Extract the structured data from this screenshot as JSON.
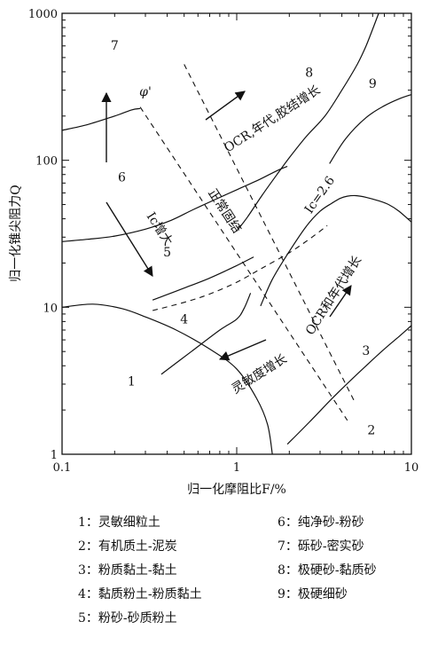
{
  "chart_data": {
    "type": "line",
    "title": "",
    "xlabel": "归一化摩阻比F/%",
    "ylabel": "归一化锥尖阻力Q",
    "x_scale": "log",
    "y_scale": "log",
    "xlim": [
      0.1,
      10
    ],
    "ylim": [
      1,
      1000
    ],
    "x_ticks": [
      0.1,
      1,
      10
    ],
    "x_tick_labels": [
      "0.1",
      "1",
      "10"
    ],
    "y_ticks": [
      1,
      10,
      100,
      1000
    ],
    "y_tick_labels": [
      "1",
      "10",
      "100",
      "1000"
    ],
    "grid": false,
    "zone_boundaries": [
      {
        "points": [
          [
            0.1,
            10
          ],
          [
            0.15,
            10.5
          ],
          [
            0.22,
            9.8
          ],
          [
            0.3,
            8.6
          ],
          [
            0.45,
            7.0
          ],
          [
            0.7,
            5.2
          ],
          [
            1.0,
            3.8
          ],
          [
            1.3,
            2.4
          ],
          [
            1.5,
            1.6
          ],
          [
            1.6,
            1.0
          ]
        ]
      },
      {
        "points": [
          [
            0.1,
            28
          ],
          [
            0.14,
            29
          ],
          [
            0.2,
            30.5
          ],
          [
            0.3,
            34
          ],
          [
            0.42,
            39
          ],
          [
            0.56,
            46
          ],
          [
            0.75,
            54
          ],
          [
            1.0,
            63
          ],
          [
            1.35,
            74
          ],
          [
            1.7,
            85
          ],
          [
            1.95,
            91
          ]
        ]
      },
      {
        "points": [
          [
            0.1,
            160
          ],
          [
            0.14,
            175
          ],
          [
            0.2,
            200
          ],
          [
            0.25,
            220
          ],
          [
            0.28,
            225
          ]
        ]
      },
      {
        "points": [
          [
            0.33,
            11.2
          ],
          [
            0.5,
            13.5
          ],
          [
            0.7,
            15.8
          ],
          [
            0.98,
            19
          ],
          [
            1.25,
            22
          ]
        ]
      },
      {
        "points": [
          [
            0.37,
            3.5
          ],
          [
            0.55,
            5.0
          ],
          [
            0.8,
            7.0
          ],
          [
            1.0,
            8.3
          ],
          [
            1.1,
            9.8
          ],
          [
            1.2,
            12.5
          ]
        ]
      },
      {
        "points": [
          [
            1.0,
            33
          ],
          [
            1.15,
            41
          ],
          [
            1.4,
            58
          ],
          [
            1.7,
            80
          ],
          [
            2.0,
            104
          ],
          [
            2.5,
            145
          ],
          [
            3.2,
            200
          ],
          [
            4.0,
            300
          ],
          [
            4.9,
            450
          ],
          [
            5.5,
            600
          ],
          [
            6.5,
            1000
          ]
        ]
      },
      {
        "points": [
          [
            1.95,
            1.17
          ],
          [
            2.6,
            1.65
          ],
          [
            3.4,
            2.3
          ],
          [
            4.2,
            2.95
          ],
          [
            5.5,
            4.0
          ],
          [
            7.0,
            5.2
          ],
          [
            8.6,
            6.4
          ],
          [
            10,
            7.5
          ]
        ]
      },
      {
        "points": [
          [
            3.4,
            95
          ],
          [
            4.2,
            140
          ],
          [
            5.5,
            195
          ],
          [
            7.0,
            235
          ],
          [
            8.5,
            262
          ],
          [
            10,
            280
          ]
        ]
      },
      {
        "points": [
          [
            1.37,
            10.2
          ],
          [
            1.6,
            15.5
          ],
          [
            2.0,
            24
          ],
          [
            2.5,
            35.5
          ],
          [
            3.0,
            45
          ],
          [
            3.5,
            51
          ],
          [
            3.9,
            55
          ],
          [
            4.3,
            57
          ],
          [
            4.8,
            57.5
          ],
          [
            5.5,
            56
          ],
          [
            6.5,
            53
          ],
          [
            7.4,
            50
          ],
          [
            8.5,
            45
          ],
          [
            10,
            38
          ]
        ]
      }
    ],
    "dashed_lines": [
      {
        "name": "Ic=2.6",
        "points": [
          [
            0.33,
            9.5
          ],
          [
            0.5,
            10.8
          ],
          [
            0.7,
            12.3
          ],
          [
            1.0,
            14.8
          ],
          [
            1.4,
            18.5
          ],
          [
            2.0,
            23.5
          ],
          [
            2.7,
            30
          ],
          [
            3.3,
            36
          ]
        ]
      },
      {
        "name": "",
        "points": [
          [
            0.28,
            230
          ],
          [
            4.3,
            1.7
          ]
        ]
      },
      {
        "name": "",
        "points": [
          [
            0.5,
            450
          ],
          [
            4.8,
            2.2
          ]
        ]
      }
    ],
    "zones": [
      {
        "id": 1,
        "label": "1",
        "x": 0.25,
        "y": 3.1
      },
      {
        "id": 2,
        "label": "2",
        "x": 5.9,
        "y": 1.45
      },
      {
        "id": 3,
        "label": "3",
        "x": 5.5,
        "y": 5.0
      },
      {
        "id": 4,
        "label": "4",
        "x": 0.5,
        "y": 8.2
      },
      {
        "id": 5,
        "label": "5",
        "x": 0.4,
        "y": 23.5
      },
      {
        "id": 6,
        "label": "6",
        "x": 0.22,
        "y": 76
      },
      {
        "id": 7,
        "label": "7",
        "x": 0.2,
        "y": 600
      },
      {
        "id": 8,
        "label": "8",
        "x": 2.6,
        "y": 390
      },
      {
        "id": 9,
        "label": "9",
        "x": 6.0,
        "y": 330
      }
    ],
    "annotations": [
      {
        "text": "φ'",
        "x": 0.3,
        "y": 290
      },
      {
        "text": "OCR,年代,胶结增长",
        "x": 1.6,
        "y": 190
      },
      {
        "text": "正常固结",
        "x": 0.85,
        "y": 45
      },
      {
        "text": "Ic增大",
        "x": 0.36,
        "y": 34
      },
      {
        "text": "Ic=2.6",
        "x": 3.0,
        "y": 58
      },
      {
        "text": "OCR和年代增长",
        "x": 3.6,
        "y": 12
      },
      {
        "text": "灵敏度增长",
        "x": 1.35,
        "y": 3.5
      }
    ],
    "legend": [
      "1：灵敏细粒土",
      "2：有机质土-泥炭",
      "3：粉质黏土-黏土",
      "4：黏质粉土-粉质黏土",
      "5：粉砂-砂质粉土",
      "6：纯净砂-粉砂",
      "7：砾砂-密实砂",
      "8：极硬砂-黏质砂",
      "9：极硬细砂"
    ]
  }
}
